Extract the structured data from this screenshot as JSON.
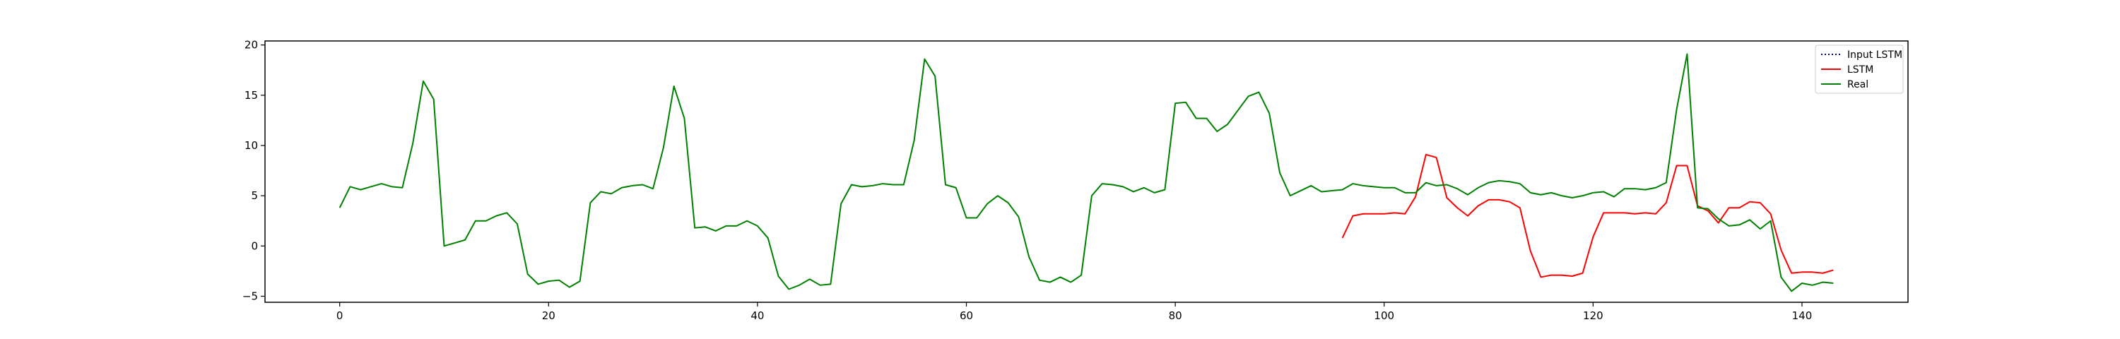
{
  "chart_data": {
    "type": "line",
    "title": "",
    "xlabel": "",
    "ylabel": "",
    "xlim": [
      -7.15,
      150.15
    ],
    "ylim": [
      -5.6,
      20.4
    ],
    "xticks": [
      0,
      20,
      40,
      60,
      80,
      100,
      120,
      140
    ],
    "yticks": [
      -5,
      0,
      5,
      10,
      15,
      20
    ],
    "grid": false,
    "legend_position": "top-right",
    "series": [
      {
        "name": "Input LSTM",
        "color": "#00008b",
        "style": "dotted",
        "x": [],
        "y": []
      },
      {
        "name": "LSTM",
        "color": "#ff0000",
        "style": "solid",
        "x": [
          96,
          97,
          98,
          99,
          100,
          101,
          102,
          103,
          104,
          105,
          106,
          107,
          108,
          109,
          110,
          111,
          112,
          113,
          114,
          115,
          116,
          117,
          118,
          119,
          120,
          121,
          122,
          123,
          124,
          125,
          126,
          127,
          128,
          129,
          130,
          131,
          132,
          133,
          134,
          135,
          136,
          137,
          138,
          139,
          140,
          141,
          142,
          143
        ],
        "y": [
          0.8,
          3.0,
          3.2,
          3.2,
          3.2,
          3.3,
          3.2,
          4.9,
          9.1,
          8.8,
          4.8,
          3.8,
          3.0,
          4.0,
          4.6,
          4.6,
          4.4,
          3.8,
          -0.5,
          -3.1,
          -2.9,
          -2.9,
          -3.0,
          -2.7,
          0.9,
          3.3,
          3.3,
          3.3,
          3.2,
          3.3,
          3.2,
          4.3,
          8.0,
          8.0,
          4.0,
          3.5,
          2.3,
          3.8,
          3.8,
          4.4,
          4.3,
          3.2,
          -0.4,
          -2.7,
          -2.6,
          -2.6,
          -2.7,
          -2.4
        ]
      },
      {
        "name": "Real",
        "color": "#008000",
        "style": "solid",
        "x": [
          0,
          1,
          2,
          3,
          4,
          5,
          6,
          7,
          8,
          9,
          10,
          11,
          12,
          13,
          14,
          15,
          16,
          17,
          18,
          19,
          20,
          21,
          22,
          23,
          24,
          25,
          26,
          27,
          28,
          29,
          30,
          31,
          32,
          33,
          34,
          35,
          36,
          37,
          38,
          39,
          40,
          41,
          42,
          43,
          44,
          45,
          46,
          47,
          48,
          49,
          50,
          51,
          52,
          53,
          54,
          55,
          56,
          57,
          58,
          59,
          60,
          61,
          62,
          63,
          64,
          65,
          66,
          67,
          68,
          69,
          70,
          71,
          72,
          73,
          74,
          75,
          76,
          77,
          78,
          79,
          80,
          81,
          82,
          83,
          84,
          85,
          86,
          87,
          88,
          89,
          90,
          91,
          92,
          93,
          94,
          95,
          96,
          97,
          98,
          99,
          100,
          101,
          102,
          103,
          104,
          105,
          106,
          107,
          108,
          109,
          110,
          111,
          112,
          113,
          114,
          115,
          116,
          117,
          118,
          119,
          120,
          121,
          122,
          123,
          124,
          125,
          126,
          127,
          128,
          129,
          130,
          131,
          132,
          133,
          134,
          135,
          136,
          137,
          138,
          139,
          140,
          141,
          142,
          143
        ],
        "y": [
          3.8,
          5.9,
          5.6,
          5.9,
          6.2,
          5.9,
          5.8,
          10.2,
          16.4,
          14.6,
          0.0,
          0.3,
          0.6,
          2.5,
          2.5,
          3.0,
          3.3,
          2.2,
          -2.8,
          -3.8,
          -3.5,
          -3.4,
          -4.1,
          -3.5,
          4.3,
          5.4,
          5.2,
          5.8,
          6.0,
          6.1,
          5.7,
          9.8,
          15.9,
          12.7,
          1.8,
          1.9,
          1.5,
          2.0,
          2.0,
          2.5,
          2.0,
          0.8,
          -3.0,
          -4.3,
          -3.9,
          -3.3,
          -3.9,
          -3.8,
          4.2,
          6.1,
          5.9,
          6.0,
          6.2,
          6.1,
          6.1,
          10.5,
          18.6,
          16.9,
          6.1,
          5.8,
          2.8,
          2.8,
          4.2,
          5.0,
          4.3,
          2.9,
          -1.1,
          -3.4,
          -3.6,
          -3.1,
          -3.6,
          -2.9,
          5.0,
          6.2,
          6.1,
          5.9,
          5.4,
          5.8,
          5.3,
          5.6,
          14.2,
          14.3,
          12.7,
          12.7,
          11.4,
          12.1,
          13.5,
          14.9,
          15.3,
          13.2,
          7.3,
          5.0,
          5.5,
          6.0,
          5.4,
          5.5,
          5.6,
          6.2,
          6.0,
          5.9,
          5.8,
          5.8,
          5.3,
          5.3,
          6.3,
          6.0,
          6.1,
          5.7,
          5.1,
          5.8,
          6.3,
          6.5,
          6.4,
          6.2,
          5.3,
          5.1,
          5.3,
          5.0,
          4.8,
          5.0,
          5.3,
          5.4,
          4.9,
          5.7,
          5.7,
          5.6,
          5.8,
          6.3,
          13.6,
          19.1,
          3.8,
          3.7,
          2.7,
          2.0,
          2.1,
          2.6,
          1.7,
          2.5,
          -3.1,
          -4.5,
          -3.7,
          -3.9,
          -3.6,
          -3.7
        ]
      }
    ]
  }
}
